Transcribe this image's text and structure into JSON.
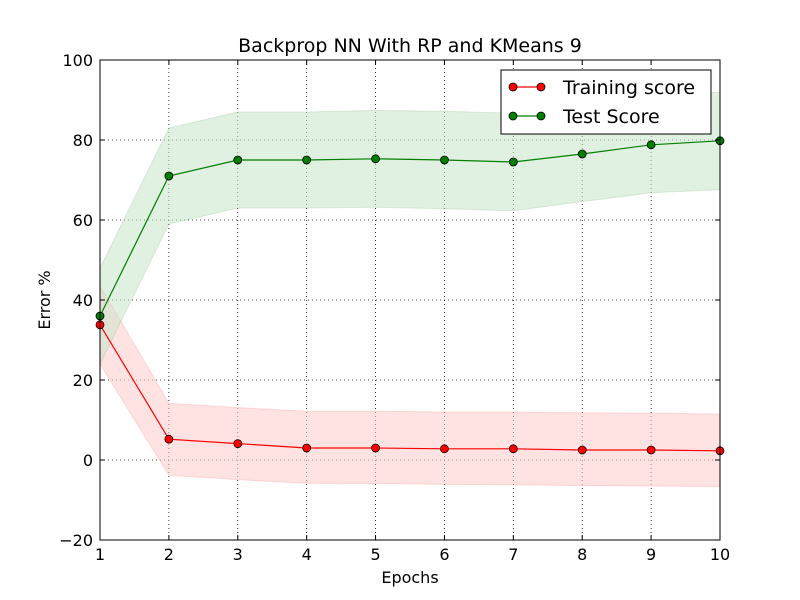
{
  "chart_data": {
    "type": "line",
    "title": "Backprop NN With RP and KMeans 9",
    "xlabel": "Epochs",
    "ylabel": "Error %",
    "xlim": [
      1,
      10
    ],
    "ylim": [
      -20,
      100
    ],
    "xticks": [
      1,
      2,
      3,
      4,
      5,
      6,
      7,
      8,
      9,
      10
    ],
    "yticks": [
      -20,
      0,
      20,
      40,
      60,
      80,
      100
    ],
    "xtick_labels": [
      "1",
      "2",
      "3",
      "4",
      "5",
      "6",
      "7",
      "8",
      "9",
      "10"
    ],
    "ytick_labels": [
      "−20",
      "0",
      "20",
      "40",
      "60",
      "80",
      "100"
    ],
    "grid": true,
    "legend_position": "top-right",
    "x": [
      1,
      2,
      3,
      4,
      5,
      6,
      7,
      8,
      9,
      10
    ],
    "series": [
      {
        "name": "Training score",
        "color": "#ff0000",
        "band_color": "#ffcccc",
        "values": [
          33.8,
          5.2,
          4.1,
          3.0,
          3.0,
          2.8,
          2.8,
          2.5,
          2.5,
          2.3
        ],
        "lower": [
          24.0,
          -3.8,
          -4.9,
          -5.8,
          -5.9,
          -6.1,
          -6.2,
          -6.4,
          -6.5,
          -6.7
        ],
        "upper": [
          43.6,
          14.2,
          13.1,
          12.2,
          12.2,
          12.0,
          12.0,
          11.8,
          11.7,
          11.5
        ]
      },
      {
        "name": "Test Score",
        "color": "#007f00",
        "band_color": "#c8e6c8",
        "values": [
          36.0,
          71.0,
          75.0,
          75.0,
          75.3,
          75.0,
          74.5,
          76.5,
          78.8,
          79.8
        ],
        "lower": [
          24.0,
          59.0,
          63.0,
          63.0,
          63.2,
          62.8,
          62.3,
          64.6,
          66.8,
          67.6
        ],
        "upper": [
          48.0,
          83.0,
          87.0,
          87.0,
          87.4,
          87.2,
          86.7,
          88.4,
          90.8,
          92.0
        ]
      }
    ]
  }
}
